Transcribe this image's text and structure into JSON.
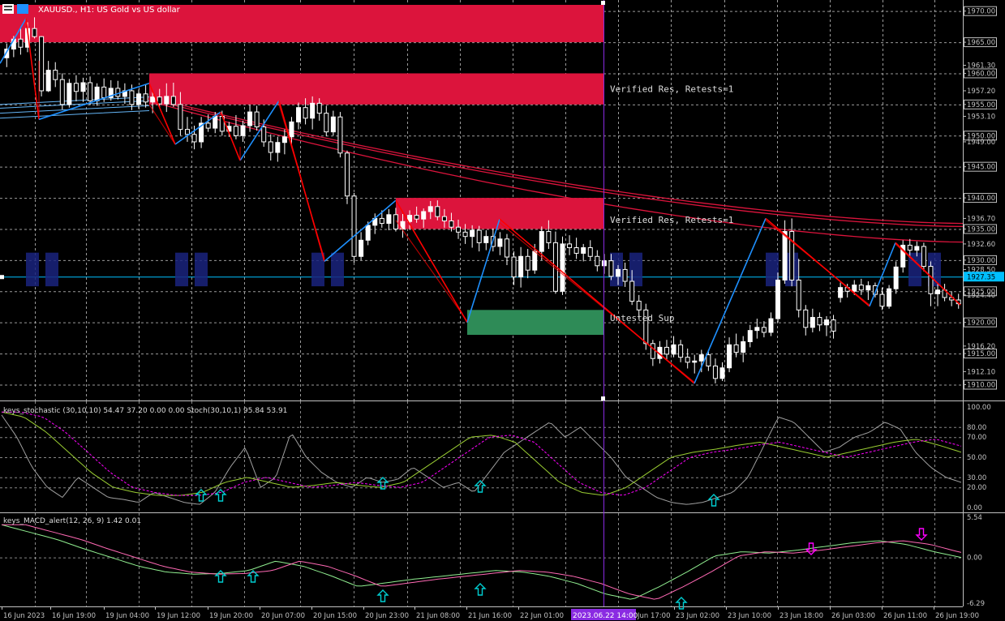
{
  "header": {
    "symbol": "XAUUSD.",
    "timeframe": "H1",
    "description": "US Gold vs US dollar",
    "title_text": "XAUUSD., H1:  US Gold vs US dollar"
  },
  "colors": {
    "background": "#000000",
    "grid": "#c0c0c0",
    "bull_candle": "#ffffff",
    "bear_candle": "#ffffff",
    "resistance_zone": "#dc143c",
    "support_zone": "#2e8b57",
    "zigzag_up": "#1e90ff",
    "zigzag_down": "#ff0000",
    "ma": "#dc143c",
    "current_price_line": "#00bfff",
    "axis_text": "#c0c0c0",
    "stoch_main": "#9acd32",
    "stoch_signal": "#ff00ff",
    "stoch_raw": "#a0a0a0",
    "macd_main": "#90ee90",
    "macd_signal": "#ff69b4",
    "arrow_up": "#00ced1",
    "arrow_down": "#ff00ff",
    "vertical_marker": "#8a2be2"
  },
  "price_axis": {
    "labels": [
      "1970.00",
      "1965.00",
      "1961.30",
      "1960.00",
      "1957.20",
      "1955.00",
      "1953.10",
      "1950.00",
      "1949.00",
      "1945.00",
      "1940.00",
      "1936.70",
      "1935.00",
      "1932.60",
      "1930.00",
      "1928.50",
      "1927.35",
      "1925.00",
      "1924.40",
      "1920.00",
      "1916.20",
      "1915.00",
      "1912.10",
      "1910.00"
    ],
    "current_price": "1927.35"
  },
  "zones": [
    {
      "label": "",
      "type": "resistance"
    },
    {
      "label": "Verified Res, Retests=1",
      "type": "resistance"
    },
    {
      "label": "Verified Res, Retests=1",
      "type": "resistance"
    },
    {
      "label": "Untested Sup",
      "type": "support"
    }
  ],
  "stoch_panel": {
    "title": "keys_stochastic (30,10,10) 54.47 37.20 0.00 0.00 Stoch(30,10,1) 95.84 53.91",
    "levels": [
      "100.00",
      "80.00",
      "70.00",
      "50.00",
      "30.00",
      "20.00",
      "0.00"
    ]
  },
  "macd_panel": {
    "title": "keys_MACD_alert(12, 26, 9) 1.42 0.01",
    "levels": [
      "5.54",
      "0.00",
      "-6.29"
    ]
  },
  "time_axis": {
    "labels": [
      "16 Jun 2023",
      "16 Jun 19:00",
      "19 Jun 04:00",
      "19 Jun 12:00",
      "19 Jun 20:00",
      "20 Jun 07:00",
      "20 Jun 15:00",
      "20 Jun 23:00",
      "21 Jun 08:00",
      "21 Jun 16:00",
      "22 Jun 01:00",
      "22 Jun 09:00",
      "22 Jun 17:00",
      "23 Jun 02:00",
      "23 Jun 10:00",
      "23 Jun 18:00",
      "26 Jun 03:00",
      "26 Jun 11:00",
      "26 Jun 19:00"
    ],
    "marker_label": "2023.06.22 14:00"
  },
  "chart_data": {
    "type": "candlestick",
    "title": "XAUUSD., H1: US Gold vs US dollar",
    "ylim": [
      1908.5,
      1971.0
    ],
    "current_price": 1927.35,
    "resistance_zones": [
      [
        1965.0,
        1971.0
      ],
      [
        1955.0,
        1960.0
      ],
      [
        1935.0,
        1940.0
      ]
    ],
    "support_zones": [
      [
        1918.0,
        1922.0
      ]
    ],
    "candles_ohlc": [
      [
        1962.5,
        1964.8,
        1961.0,
        1963.9
      ],
      [
        1963.9,
        1966.0,
        1962.6,
        1965.5
      ],
      [
        1965.5,
        1967.4,
        1963.0,
        1964.2
      ],
      [
        1964.2,
        1968.2,
        1963.4,
        1967.2
      ],
      [
        1967.2,
        1969.0,
        1965.6,
        1965.9
      ],
      [
        1965.9,
        1966.0,
        1956.3,
        1957.2
      ],
      [
        1957.2,
        1962.0,
        1957.0,
        1960.5
      ],
      [
        1960.5,
        1961.8,
        1957.8,
        1959.0
      ],
      [
        1959.0,
        1960.0,
        1954.2,
        1955.0
      ],
      [
        1955.0,
        1959.1,
        1954.5,
        1958.4
      ],
      [
        1958.4,
        1959.7,
        1955.5,
        1957.1
      ],
      [
        1957.1,
        1959.3,
        1955.4,
        1958.5
      ],
      [
        1958.5,
        1959.5,
        1954.9,
        1955.6
      ],
      [
        1955.6,
        1958.4,
        1954.8,
        1957.8
      ],
      [
        1957.8,
        1959.2,
        1955.4,
        1956.1
      ],
      [
        1956.1,
        1958.9,
        1955.6,
        1957.6
      ],
      [
        1957.6,
        1958.8,
        1955.8,
        1956.3
      ],
      [
        1956.3,
        1958.4,
        1955.1,
        1957.2
      ],
      [
        1957.2,
        1958.2,
        1954.1,
        1955.0
      ],
      [
        1955.0,
        1957.4,
        1954.3,
        1956.7
      ],
      [
        1956.7,
        1958.3,
        1954.5,
        1955.4
      ],
      [
        1955.4,
        1957.0,
        1953.6,
        1956.2
      ],
      [
        1956.2,
        1957.5,
        1954.6,
        1955.1
      ],
      [
        1955.1,
        1958.4,
        1953.8,
        1956.3
      ],
      [
        1956.3,
        1958.5,
        1954.6,
        1955.0
      ],
      [
        1955.0,
        1957.0,
        1950.0,
        1951.0
      ],
      [
        1951.0,
        1953.0,
        1949.0,
        1950.2
      ],
      [
        1950.2,
        1951.6,
        1947.8,
        1949.0
      ],
      [
        1949.0,
        1953.0,
        1948.0,
        1952.0
      ],
      [
        1952.0,
        1953.4,
        1950.6,
        1951.2
      ],
      [
        1951.2,
        1953.8,
        1950.4,
        1953.1
      ],
      [
        1953.1,
        1954.0,
        1950.0,
        1950.7
      ],
      [
        1950.7,
        1952.2,
        1949.8,
        1951.5
      ],
      [
        1951.5,
        1953.3,
        1949.4,
        1950.0
      ],
      [
        1950.0,
        1952.4,
        1949.0,
        1951.6
      ],
      [
        1951.6,
        1955.0,
        1950.6,
        1953.8
      ],
      [
        1953.8,
        1954.8,
        1950.8,
        1951.4
      ],
      [
        1951.4,
        1952.6,
        1948.2,
        1949.0
      ],
      [
        1949.0,
        1950.2,
        1946.0,
        1947.3
      ],
      [
        1947.3,
        1949.8,
        1945.8,
        1948.9
      ],
      [
        1948.9,
        1951.0,
        1947.0,
        1949.8
      ],
      [
        1949.8,
        1953.0,
        1948.6,
        1952.2
      ],
      [
        1952.2,
        1955.3,
        1951.0,
        1954.5
      ],
      [
        1954.5,
        1956.0,
        1951.8,
        1952.8
      ],
      [
        1952.8,
        1956.3,
        1951.0,
        1955.2
      ],
      [
        1955.2,
        1956.0,
        1952.4,
        1953.6
      ],
      [
        1953.6,
        1954.8,
        1949.9,
        1950.6
      ],
      [
        1950.6,
        1954.0,
        1950.0,
        1953.0
      ],
      [
        1953.0,
        1953.8,
        1946.5,
        1947.2
      ],
      [
        1947.2,
        1947.6,
        1939.0,
        1940.3
      ],
      [
        1940.3,
        1940.8,
        1929.6,
        1930.6
      ],
      [
        1930.6,
        1934.5,
        1930.0,
        1933.2
      ],
      [
        1933.2,
        1936.2,
        1932.4,
        1935.6
      ],
      [
        1935.6,
        1937.5,
        1934.2,
        1936.7
      ],
      [
        1936.7,
        1938.0,
        1935.2,
        1935.9
      ],
      [
        1935.9,
        1938.2,
        1934.8,
        1937.3
      ],
      [
        1937.3,
        1938.4,
        1934.6,
        1935.0
      ],
      [
        1935.0,
        1937.4,
        1933.6,
        1936.2
      ],
      [
        1936.2,
        1938.0,
        1935.0,
        1937.2
      ],
      [
        1937.2,
        1938.6,
        1936.0,
        1936.6
      ],
      [
        1936.6,
        1938.3,
        1935.2,
        1937.8
      ],
      [
        1937.8,
        1939.5,
        1936.6,
        1938.6
      ],
      [
        1938.6,
        1939.6,
        1936.4,
        1937.0
      ],
      [
        1937.0,
        1938.2,
        1935.2,
        1936.3
      ],
      [
        1936.3,
        1937.6,
        1934.6,
        1935.3
      ],
      [
        1935.3,
        1936.5,
        1933.4,
        1934.5
      ],
      [
        1934.5,
        1935.8,
        1932.6,
        1933.8
      ],
      [
        1933.8,
        1935.6,
        1932.0,
        1934.8
      ],
      [
        1934.8,
        1935.5,
        1931.4,
        1932.8
      ],
      [
        1932.8,
        1934.8,
        1931.6,
        1933.8
      ],
      [
        1933.8,
        1935.1,
        1931.4,
        1932.2
      ],
      [
        1932.2,
        1934.5,
        1930.8,
        1933.4
      ],
      [
        1933.4,
        1934.2,
        1929.2,
        1930.5
      ],
      [
        1930.5,
        1931.4,
        1926.0,
        1927.3
      ],
      [
        1927.3,
        1932.1,
        1925.6,
        1930.6
      ],
      [
        1930.6,
        1931.8,
        1927.1,
        1928.4
      ],
      [
        1928.4,
        1932.6,
        1927.8,
        1931.4
      ],
      [
        1931.4,
        1935.4,
        1930.0,
        1934.6
      ],
      [
        1934.6,
        1936.4,
        1931.8,
        1932.8
      ],
      [
        1932.8,
        1934.6,
        1924.6,
        1925.0
      ],
      [
        1925.0,
        1933.8,
        1924.4,
        1932.6
      ],
      [
        1932.6,
        1934.0,
        1930.8,
        1932.0
      ],
      [
        1932.0,
        1933.6,
        1930.2,
        1931.1
      ],
      [
        1931.1,
        1932.6,
        1929.8,
        1932.0
      ],
      [
        1932.0,
        1933.2,
        1930.0,
        1930.6
      ],
      [
        1930.6,
        1931.6,
        1928.2,
        1929.1
      ],
      [
        1929.1,
        1931.0,
        1927.8,
        1929.9
      ],
      [
        1929.9,
        1931.0,
        1926.8,
        1927.4
      ],
      [
        1927.4,
        1929.2,
        1926.0,
        1928.5
      ],
      [
        1928.5,
        1929.6,
        1925.7,
        1926.6
      ],
      [
        1926.6,
        1928.4,
        1922.8,
        1923.4
      ],
      [
        1923.4,
        1924.4,
        1920.6,
        1922.0
      ],
      [
        1922.0,
        1923.0,
        1915.6,
        1916.6
      ],
      [
        1916.6,
        1917.2,
        1913.0,
        1914.2
      ],
      [
        1914.2,
        1917.0,
        1913.4,
        1916.0
      ],
      [
        1916.0,
        1917.2,
        1914.0,
        1914.9
      ],
      [
        1914.9,
        1917.8,
        1914.4,
        1916.4
      ],
      [
        1916.4,
        1917.2,
        1913.6,
        1914.4
      ],
      [
        1914.4,
        1915.8,
        1912.6,
        1913.6
      ],
      [
        1913.6,
        1914.8,
        1911.8,
        1913.8
      ],
      [
        1913.8,
        1915.6,
        1912.0,
        1914.8
      ],
      [
        1914.8,
        1915.6,
        1912.2,
        1913.0
      ],
      [
        1913.0,
        1914.2,
        1910.2,
        1911.0
      ],
      [
        1911.0,
        1913.6,
        1910.6,
        1912.7
      ],
      [
        1912.7,
        1917.6,
        1912.0,
        1916.4
      ],
      [
        1916.4,
        1918.2,
        1914.4,
        1915.2
      ],
      [
        1915.2,
        1917.8,
        1913.6,
        1916.9
      ],
      [
        1916.9,
        1919.6,
        1916.0,
        1918.7
      ],
      [
        1918.7,
        1920.6,
        1917.4,
        1919.2
      ],
      [
        1919.2,
        1920.2,
        1917.6,
        1918.4
      ],
      [
        1918.4,
        1921.6,
        1917.8,
        1920.6
      ],
      [
        1920.6,
        1928.0,
        1920.0,
        1926.8
      ],
      [
        1926.8,
        1936.4,
        1926.2,
        1934.6
      ],
      [
        1934.6,
        1936.7,
        1925.8,
        1926.8
      ],
      [
        1926.8,
        1930.2,
        1920.8,
        1922.0
      ],
      [
        1922.0,
        1922.8,
        1917.9,
        1919.2
      ],
      [
        1919.2,
        1922.2,
        1918.4,
        1920.8
      ],
      [
        1920.8,
        1921.6,
        1918.6,
        1919.6
      ],
      [
        1919.6,
        1921.0,
        1917.8,
        1920.4
      ],
      [
        1920.4,
        1921.2,
        1917.4,
        1918.6
      ],
      [
        1924.0,
        1926.4,
        1923.2,
        1925.6
      ],
      [
        1925.6,
        1926.2,
        1924.0,
        1925.0
      ],
      [
        1925.0,
        1926.8,
        1924.4,
        1926.0
      ],
      [
        1926.0,
        1927.0,
        1924.4,
        1925.2
      ],
      [
        1925.2,
        1926.6,
        1923.6,
        1925.9
      ],
      [
        1925.9,
        1926.4,
        1924.0,
        1924.5
      ],
      [
        1924.5,
        1925.6,
        1922.0,
        1922.6
      ],
      [
        1922.6,
        1926.0,
        1922.2,
        1925.4
      ],
      [
        1925.4,
        1929.8,
        1924.6,
        1928.9
      ],
      [
        1928.9,
        1933.2,
        1928.0,
        1932.4
      ],
      [
        1932.4,
        1933.4,
        1930.4,
        1931.6
      ],
      [
        1931.6,
        1933.0,
        1930.6,
        1932.2
      ],
      [
        1932.2,
        1932.8,
        1928.2,
        1929.0
      ],
      [
        1929.0,
        1929.8,
        1922.6,
        1924.6
      ],
      [
        1924.6,
        1926.2,
        1922.6,
        1925.2
      ],
      [
        1925.2,
        1926.2,
        1923.4,
        1924.0
      ],
      [
        1924.0,
        1925.0,
        1922.6,
        1923.6
      ],
      [
        1923.6,
        1924.6,
        1922.2,
        1923.0
      ]
    ],
    "moving_averages_end_values": [
      1936.2,
      1935.4,
      1932.6
    ],
    "stochastic_levels": [
      100,
      80,
      70,
      50,
      30,
      20,
      0
    ],
    "macd_range": [
      -6.29,
      5.54
    ]
  }
}
